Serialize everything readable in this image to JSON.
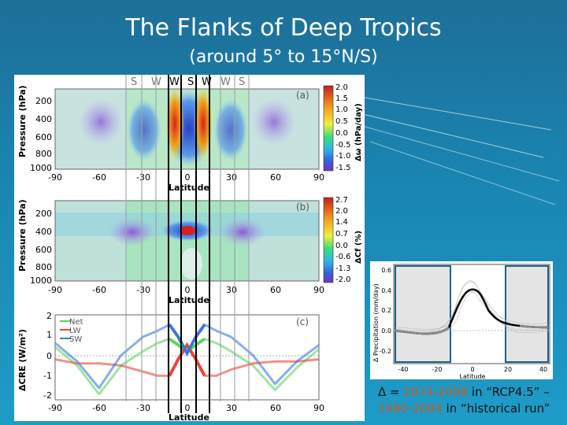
{
  "slide": {
    "title": "The Flanks of Deep Tropics",
    "subtitle": "(around 5° to 15°N/S)"
  },
  "seasons": [
    "S",
    "W",
    "W",
    "S",
    "W",
    "W",
    "S"
  ],
  "panel_a": {
    "tag": "(a)",
    "ylabel": "Pressure (hPa)",
    "yticks": [
      "200",
      "400",
      "600",
      "800",
      "1000"
    ],
    "xticks": [
      "-90",
      "-60",
      "-30",
      "0",
      "30",
      "60",
      "90"
    ],
    "xlabel": "Latitude",
    "cbar_label": "Δω (hPa/day)",
    "cbar_ticks": [
      "2.0",
      "1.5",
      "1.0",
      "0.5",
      "0.0",
      "-0.5",
      "-1.0",
      "-1.5"
    ]
  },
  "panel_b": {
    "tag": "(b)",
    "ylabel": "Pressure (hPa)",
    "yticks": [
      "200",
      "400",
      "600",
      "800",
      "1000"
    ],
    "xticks": [
      "-90",
      "-60",
      "-30",
      "0",
      "30",
      "60",
      "90"
    ],
    "xlabel": "Latitude",
    "cbar_label": "ΔCf (%)",
    "cbar_ticks": [
      "2.7",
      "2.0",
      "1.4",
      "0.7",
      "0.0",
      "-0.6",
      "-1.3",
      "-2.0"
    ]
  },
  "panel_c": {
    "tag": "(c)",
    "ylabel": "ΔCRE (W/m²)",
    "yticks": [
      "2",
      "1",
      "0",
      "-1",
      "-2"
    ],
    "xticks": [
      "-90",
      "-60",
      "-30",
      "0",
      "30",
      "60",
      "90"
    ],
    "xlabel": "Latitude",
    "legend": [
      "Net",
      "LW",
      "SW"
    ],
    "colors": {
      "net": "#5fd35f",
      "lw": "#e8463a",
      "sw": "#3a78d8"
    }
  },
  "inset": {
    "ylabel": "Δ Precipitation (mm/day)",
    "xlabel": "Latitude",
    "yticks": [
      "0.6",
      "0.4",
      "0.2",
      "0.0",
      "-0.2"
    ],
    "xticks": [
      "-40",
      "-20",
      "0",
      "20",
      "40"
    ]
  },
  "caption": {
    "delta": "Δ = ",
    "period_future": "2074-2098",
    "mid1": " in “RCP4.5” –",
    "period_hist": "1980-2004",
    "mid2": " in “historical run”"
  },
  "chart_data": {
    "type": "line",
    "title": "",
    "xlabel": "Latitude",
    "ylabel": "ΔCRE (W/m²)",
    "xlim": [
      -90,
      90
    ],
    "ylim": [
      -2,
      2
    ],
    "legend_position": "top-left",
    "x": [
      -90,
      -75,
      -60,
      -45,
      -30,
      -20,
      -12,
      -6,
      0,
      6,
      12,
      20,
      30,
      45,
      60,
      75,
      90
    ],
    "series": [
      {
        "name": "Net",
        "values": [
          0.5,
          -0.4,
          -1.8,
          -0.4,
          0.3,
          0.7,
          0.9,
          0.6,
          0.3,
          0.6,
          0.9,
          0.7,
          0.3,
          -0.4,
          -1.6,
          -0.5,
          0.4
        ]
      },
      {
        "name": "LW",
        "values": [
          -0.1,
          -0.3,
          -0.3,
          -0.4,
          -0.7,
          -0.9,
          -0.9,
          -0.1,
          0.6,
          -0.1,
          -0.9,
          -0.9,
          -0.6,
          -0.3,
          -0.2,
          -0.2,
          -0.1
        ]
      },
      {
        "name": "SW",
        "values": [
          0.7,
          -0.2,
          -1.5,
          0.1,
          1.0,
          1.3,
          1.6,
          1.0,
          0.2,
          1.0,
          1.6,
          1.3,
          1.0,
          0.1,
          -1.3,
          -0.2,
          0.6
        ]
      }
    ]
  }
}
